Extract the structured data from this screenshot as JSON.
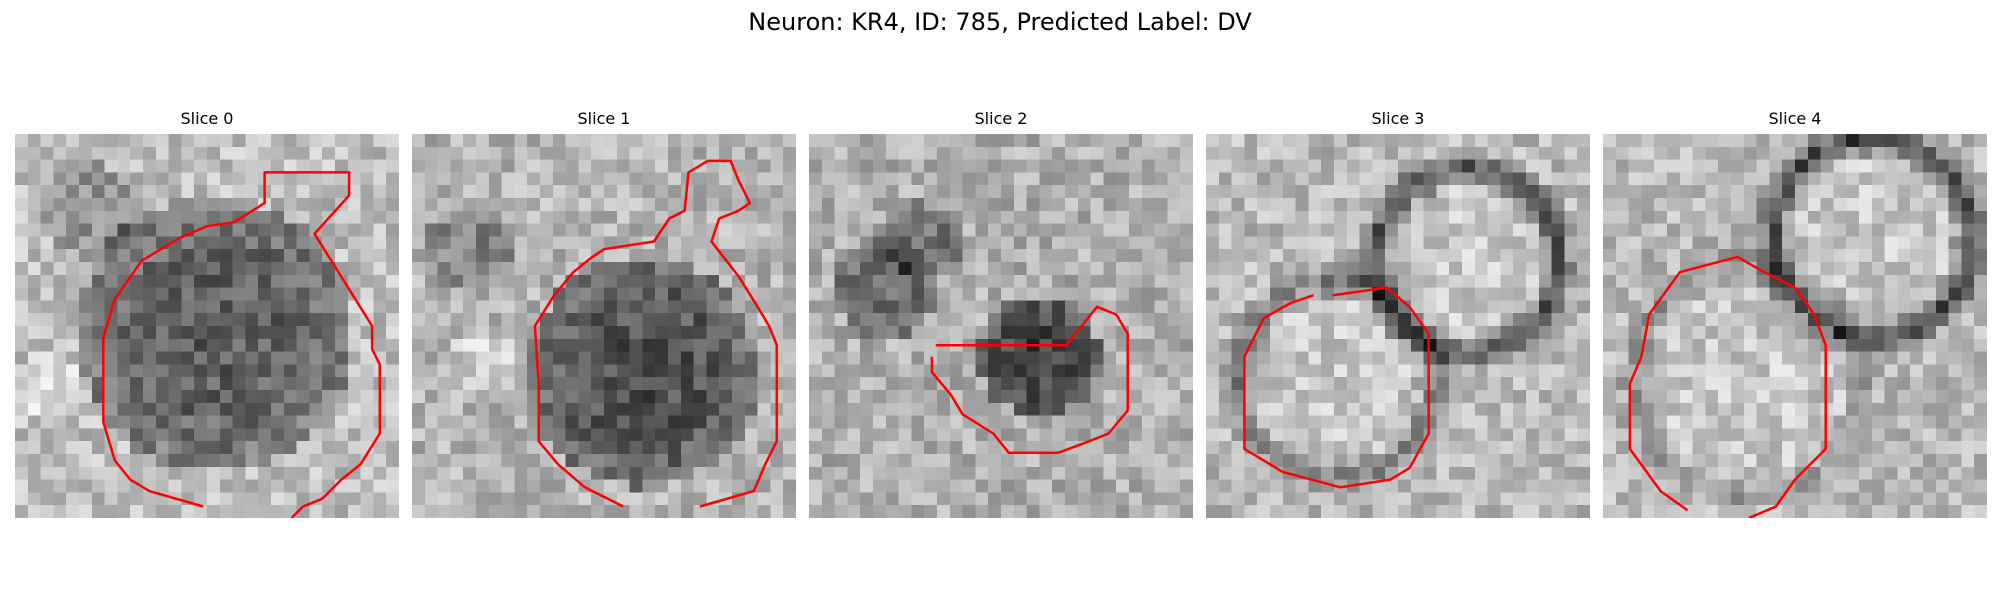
{
  "figure": {
    "title": "Neuron: KR4, ID: 785, Predicted Label: DV",
    "contour_color": "#ff0000"
  },
  "panels": [
    {
      "title": "Slice 0"
    },
    {
      "title": "Slice 1"
    },
    {
      "title": "Slice 2"
    },
    {
      "title": "Slice 3"
    },
    {
      "title": "Slice 4"
    }
  ]
}
